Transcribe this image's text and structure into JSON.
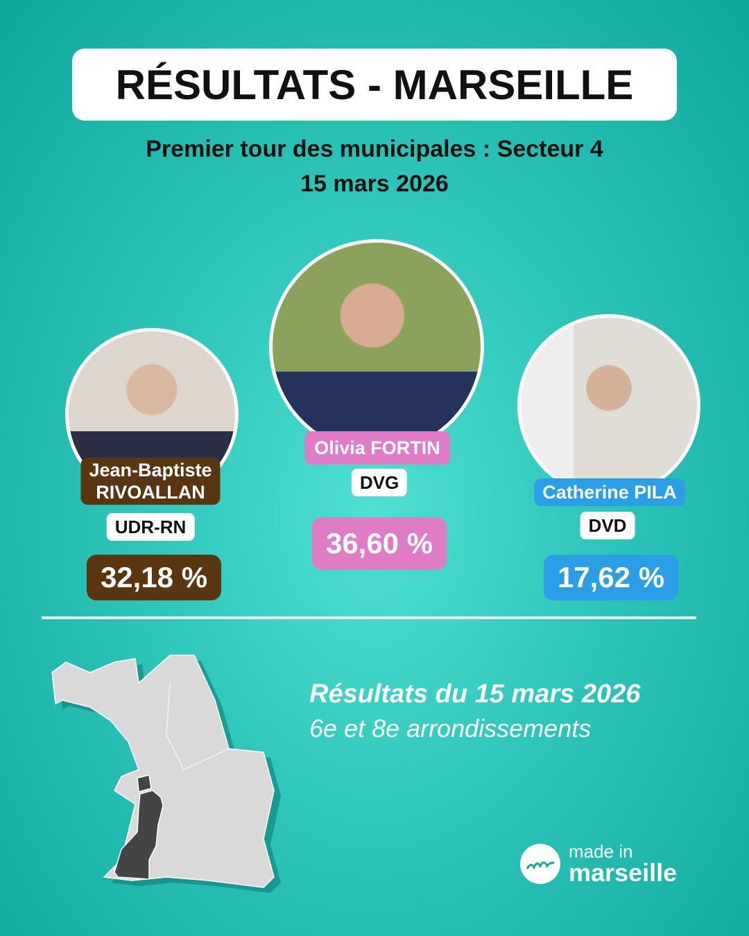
{
  "title": "RÉSULTATS - MARSEILLE",
  "subtitle": "Premier tour des municipales : Secteur 4",
  "date": "15 mars 2026",
  "candidates": [
    {
      "name": "Jean-Baptiste RIVOALLAN",
      "name_line1": "Jean-Baptiste",
      "name_line2": "RIVOALLAN",
      "party": "UDR-RN",
      "percent": "32,18 %",
      "color": "#5a3511"
    },
    {
      "name": "Olivia FORTIN",
      "party": "DVG",
      "percent": "36,60 %",
      "color": "#e07bc5"
    },
    {
      "name": "Catherine PILA",
      "party": "DVD",
      "percent": "17,62 %",
      "color": "#2b9ee8"
    }
  ],
  "results": {
    "heading": "Résultats du 15 mars 2026",
    "detail": "6e et 8e arrondissements"
  },
  "map": {
    "highlight_color": "#444444",
    "base_color": "#d9d9d9"
  },
  "logo": {
    "line1": "made in",
    "line2": "marseille"
  }
}
